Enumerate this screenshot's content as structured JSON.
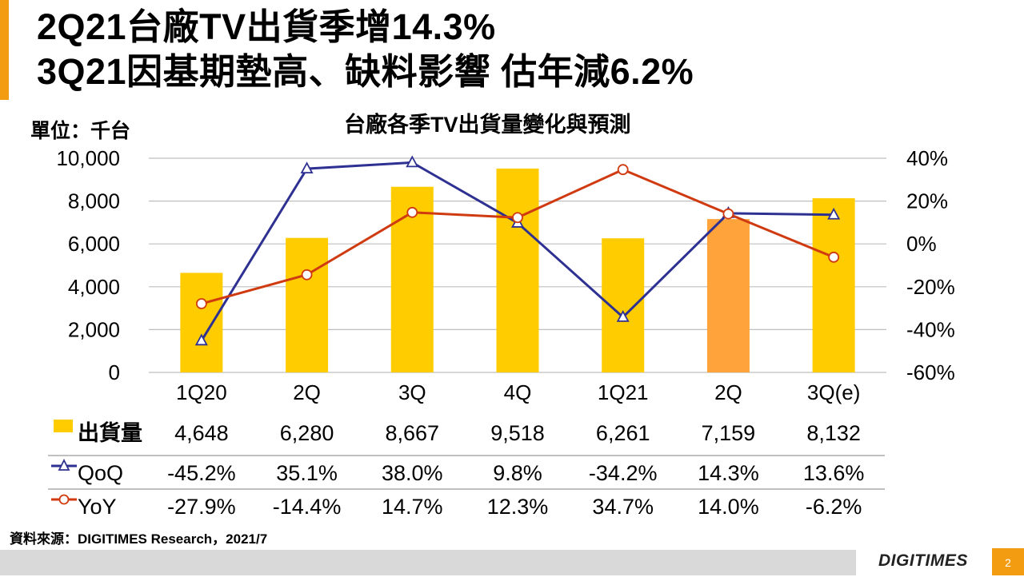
{
  "slide": {
    "title_line1": "2Q21台廠TV出貨季增14.3%",
    "title_line2": "3Q21因基期墊高、缺料影響 估年減6.2%",
    "unit_label": "單位：千台",
    "source": "資料來源：DIGITIMES Research，2021/7",
    "logo_text": "DIGITIMES",
    "page_number": "2",
    "colors": {
      "accent": "#f39c12",
      "footer": "#d9d9d9"
    }
  },
  "chart_data": {
    "type": "bar",
    "title": "台廠各季TV出貨量變化與預測",
    "categories": [
      "1Q20",
      "2Q",
      "3Q",
      "4Q",
      "1Q21",
      "2Q",
      "3Q(e)"
    ],
    "ylim": [
      0,
      10000
    ],
    "y_ticks": [
      "10,000",
      "8,000",
      "6,000",
      "4,000",
      "2,000",
      "0"
    ],
    "y_tick_values": [
      10000,
      8000,
      6000,
      4000,
      2000,
      0
    ],
    "y2lim": [
      -60,
      40
    ],
    "y2_ticks": [
      "40%",
      "20%",
      "0%",
      "-20%",
      "-40%",
      "-60%"
    ],
    "y2_tick_values": [
      40,
      20,
      0,
      -20,
      -40,
      -60
    ],
    "grid": true,
    "series": [
      {
        "name": "出貨量",
        "kind": "bar",
        "axis": "left",
        "color": "#ffcc00",
        "highlight_index": 5,
        "highlight_color": "#ffa33a",
        "values": [
          4648,
          6280,
          8667,
          9518,
          6261,
          7159,
          8132
        ],
        "labels": [
          "4,648",
          "6,280",
          "8,667",
          "9,518",
          "6,261",
          "7,159",
          "8,132"
        ]
      },
      {
        "name": "QoQ",
        "kind": "line",
        "axis": "right",
        "color": "#2e3192",
        "marker": "triangle",
        "values": [
          -45.2,
          35.1,
          38.0,
          9.8,
          -34.2,
          14.3,
          13.6
        ],
        "labels": [
          "-45.2%",
          "35.1%",
          "38.0%",
          "9.8%",
          "-34.2%",
          "14.3%",
          "13.6%"
        ]
      },
      {
        "name": "YoY",
        "kind": "line",
        "axis": "right",
        "color": "#d03a10",
        "marker": "circle",
        "values": [
          -27.9,
          -14.4,
          14.7,
          12.3,
          34.7,
          14.0,
          -6.2
        ],
        "labels": [
          "-27.9%",
          "-14.4%",
          "14.7%",
          "12.3%",
          "34.7%",
          "14.0%",
          "-6.2%"
        ]
      }
    ]
  }
}
